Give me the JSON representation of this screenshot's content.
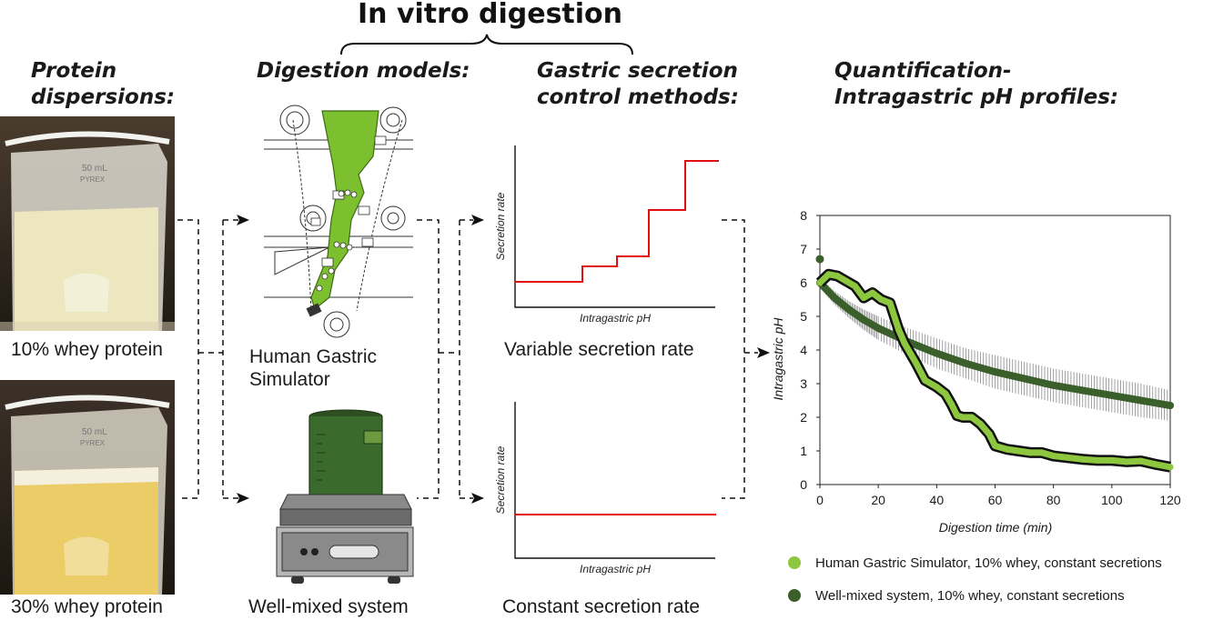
{
  "title": "In vitro digestion",
  "columns": {
    "dispersions": {
      "heading_line1": "Protein",
      "heading_line2": "dispersions:"
    },
    "models": {
      "heading": "Digestion models:"
    },
    "secretion": {
      "heading_line1": "Gastric secretion",
      "heading_line2": "control methods:"
    },
    "quantification": {
      "heading_line1": "Quantification-",
      "heading_line2": "Intragastric pH profiles:"
    }
  },
  "beakers": [
    {
      "caption": "10% whey protein",
      "volume_label": "50 mL",
      "brand": "PYREX",
      "liquid_color": "#ece7bf"
    },
    {
      "caption": "30% whey protein",
      "volume_label": "50 mL",
      "brand": "PYREX",
      "liquid_color": "#ebcc66"
    }
  ],
  "models": {
    "hgs": {
      "line1": "Human Gastric",
      "line2": "Simulator",
      "color": "#7cbf2f"
    },
    "wms": {
      "label": "Well-mixed system",
      "color": "#3a6a2c"
    }
  },
  "secretion_charts": [
    {
      "caption": "Variable secretion rate",
      "ylabel": "Secretion rate",
      "xlabel": "Intragastric pH",
      "kind": "step"
    },
    {
      "caption": "Constant secretion rate",
      "ylabel": "Secretion rate",
      "xlabel": "Intragastric pH",
      "kind": "flat"
    }
  ],
  "chart_data": {
    "type": "line",
    "xlabel": "Digestion time (min)",
    "ylabel": "Intragastric pH",
    "xlim": [
      0,
      120
    ],
    "ylim": [
      0,
      8
    ],
    "xticks": [
      "0",
      "20",
      "40",
      "60",
      "80",
      "100",
      "120"
    ],
    "yticks": [
      "0",
      "1",
      "2",
      "3",
      "4",
      "5",
      "6",
      "7",
      "8"
    ],
    "grid": false,
    "legend_position": "bottom",
    "series": [
      {
        "name": "Human Gastric Simulator, 10% whey, constant secretions",
        "color": "#8dc63f",
        "x": [
          0,
          3,
          6,
          9,
          12,
          15,
          18,
          21,
          24,
          27,
          29,
          31,
          33,
          36,
          40,
          43,
          45,
          47,
          49,
          52,
          55,
          58,
          60,
          64,
          68,
          72,
          76,
          80,
          85,
          90,
          95,
          100,
          105,
          110,
          115,
          120
        ],
        "y": [
          6.0,
          6.25,
          6.2,
          6.05,
          5.9,
          5.55,
          5.7,
          5.5,
          5.4,
          4.6,
          4.2,
          3.9,
          3.6,
          3.1,
          2.9,
          2.7,
          2.4,
          2.05,
          2.0,
          2.0,
          1.8,
          1.5,
          1.15,
          1.05,
          1.0,
          0.95,
          0.95,
          0.85,
          0.8,
          0.75,
          0.72,
          0.72,
          0.68,
          0.7,
          0.6,
          0.52
        ]
      },
      {
        "name": "Well-mixed system, 10% whey, constant secretions",
        "color": "#3a5f2a",
        "x": [
          0,
          5,
          10,
          15,
          20,
          30,
          40,
          50,
          60,
          70,
          80,
          90,
          100,
          110,
          120
        ],
        "y": [
          6.0,
          5.55,
          5.2,
          4.9,
          4.65,
          4.25,
          3.9,
          3.6,
          3.35,
          3.15,
          2.95,
          2.8,
          2.65,
          2.5,
          2.35
        ],
        "error": [
          0.15,
          0.2,
          0.25,
          0.3,
          0.35,
          0.4,
          0.45,
          0.45,
          0.5,
          0.5,
          0.5,
          0.5,
          0.5,
          0.5,
          0.45
        ]
      }
    ],
    "outlier_point": {
      "x": 0,
      "y": 6.7
    }
  }
}
